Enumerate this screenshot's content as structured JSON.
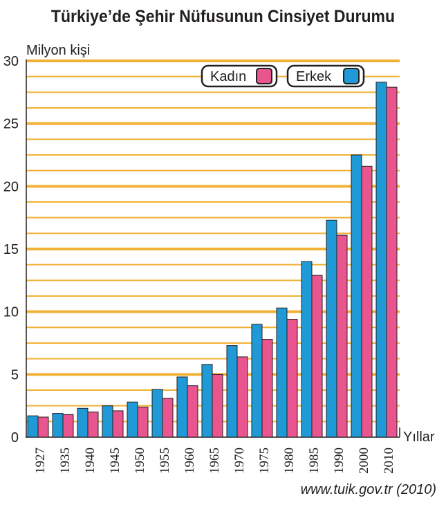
{
  "chart_data": {
    "type": "bar",
    "title": "Türkiye’de Şehir Nüfusunun Cinsiyet Durumu",
    "ylabel": "Milyon kişi",
    "xlabel": "Yıllar",
    "ylim": [
      0,
      30
    ],
    "yticks": [
      "0",
      "5",
      "10",
      "15",
      "20",
      "25",
      "30"
    ],
    "categories": [
      "1927",
      "1935",
      "1940",
      "1945",
      "1950",
      "1955",
      "1960",
      "1965",
      "1970",
      "1975",
      "1980",
      "1985",
      "1990",
      "2000",
      "2010"
    ],
    "series": [
      {
        "name": "Erkek",
        "color": "#1f9ad6",
        "values": [
          1.7,
          1.9,
          2.3,
          2.5,
          2.8,
          3.8,
          4.8,
          5.8,
          7.3,
          9.0,
          10.3,
          14.0,
          17.3,
          22.5,
          28.3
        ]
      },
      {
        "name": "Kadın",
        "color": "#e8558f",
        "values": [
          1.6,
          1.8,
          2.0,
          2.1,
          2.4,
          3.1,
          4.1,
          5.0,
          6.4,
          7.8,
          9.4,
          12.9,
          16.1,
          21.6,
          27.9
        ]
      }
    ],
    "legend": {
      "position": "top-right",
      "order": [
        "Kadın",
        "Erkek"
      ]
    },
    "grid": true,
    "gridline_color": "#f2b134"
  },
  "source": "www.tuik.gov.tr (2010)"
}
